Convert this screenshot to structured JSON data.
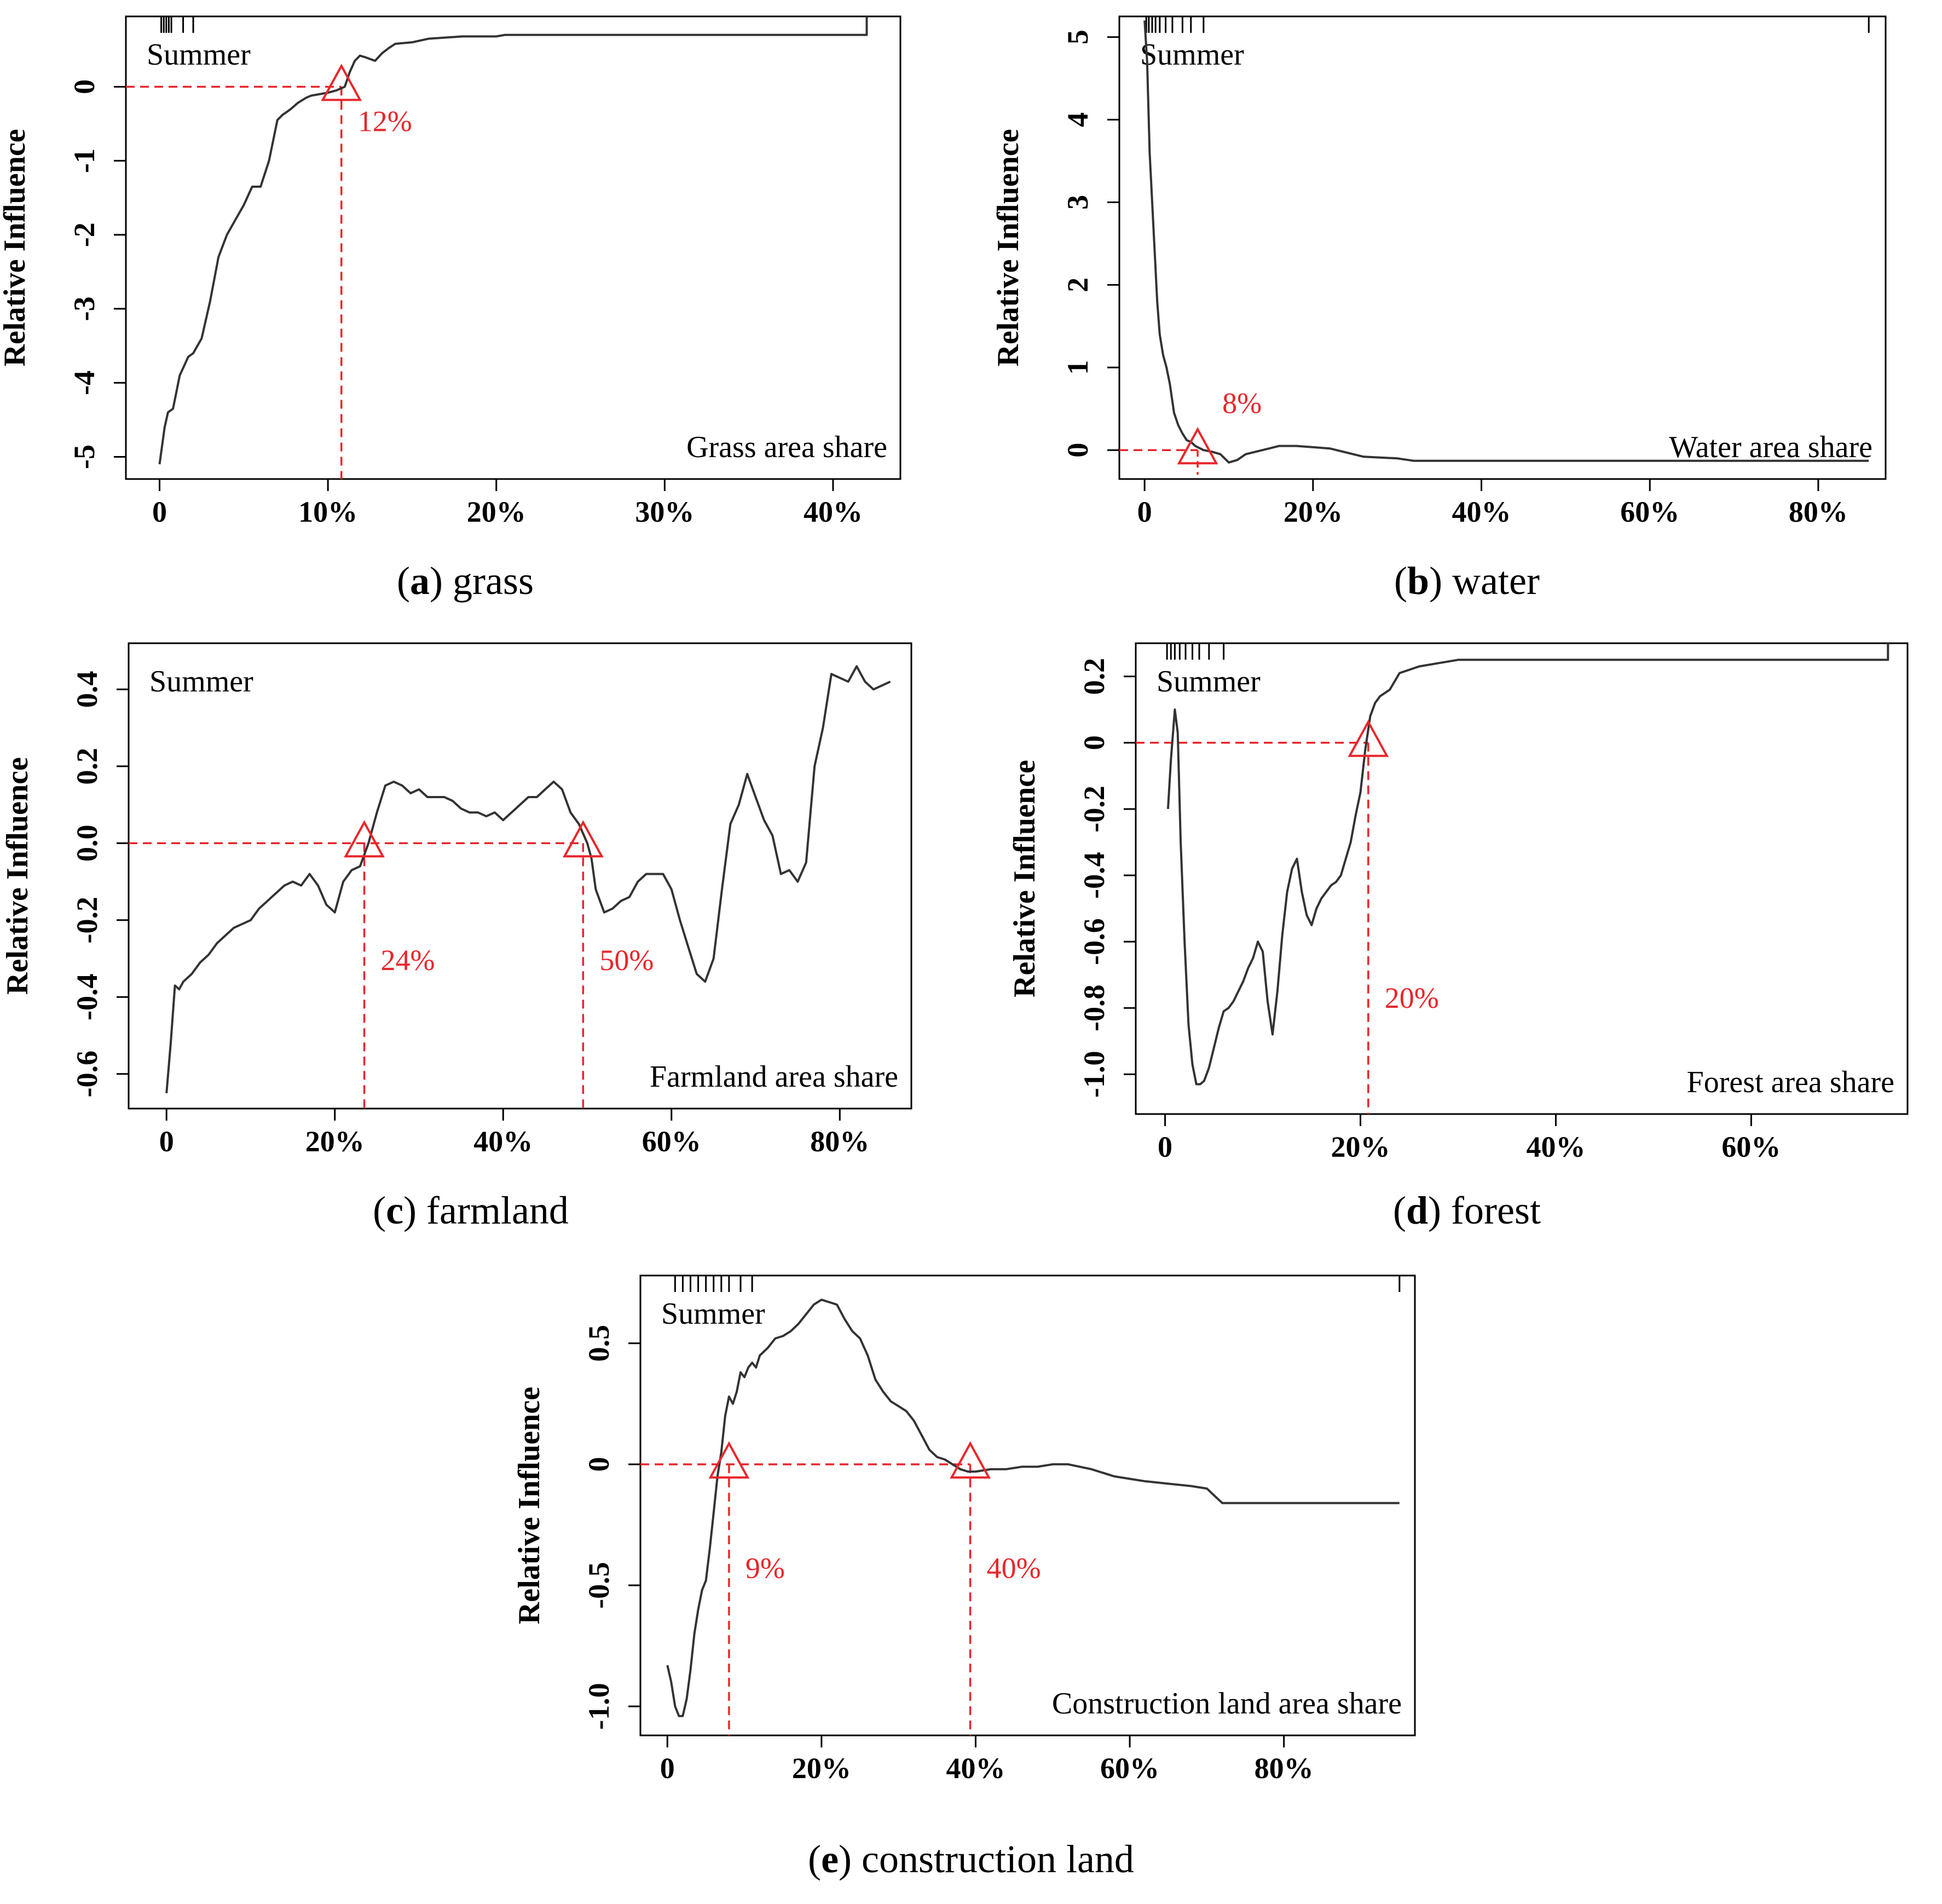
{
  "chart_data": [
    {
      "id": "a",
      "type": "line",
      "caption_letter": "a",
      "caption_text": "grass",
      "ylabel": "Relative Influence",
      "season": "Summer",
      "corner_label": "Grass area share",
      "xlim": [
        -2,
        44
      ],
      "ylim": [
        -5.3,
        0.95
      ],
      "xticks": [
        0,
        10,
        20,
        30,
        40
      ],
      "xtick_labels": [
        "0",
        "10%",
        "20%",
        "30%",
        "40%"
      ],
      "yticks": [
        0,
        -1,
        -2,
        -3,
        -4,
        -5
      ],
      "ytick_labels": [
        "0",
        "-1",
        "-2",
        "-3",
        "-4",
        "-5"
      ],
      "rug": [
        0.1,
        0.25,
        0.4,
        0.55,
        0.7,
        1.4,
        2.0
      ],
      "line": {
        "x": [
          0,
          0.3,
          0.5,
          0.8,
          1.2,
          1.5,
          1.7,
          2.0,
          2.5,
          3.0,
          3.5,
          4.0,
          4.5,
          5.0,
          5.5,
          6.0,
          6.5,
          7.0,
          7.3,
          7.5,
          7.8,
          8.2,
          8.7,
          9.0,
          9.5,
          10.0,
          10.5,
          11.0,
          11.3,
          11.6,
          11.9,
          12.2,
          12.8,
          13.2,
          13.6,
          14.0,
          15.0,
          16.0,
          18.0,
          20.0,
          20.5,
          22.0,
          25.0,
          30.0,
          35.0,
          40.0,
          42.0,
          42.0
        ],
        "y": [
          -5.1,
          -4.6,
          -4.4,
          -4.35,
          -3.9,
          -3.75,
          -3.65,
          -3.6,
          -3.4,
          -2.9,
          -2.3,
          -2.0,
          -1.8,
          -1.6,
          -1.35,
          -1.35,
          -1.0,
          -0.45,
          -0.38,
          -0.35,
          -0.3,
          -0.22,
          -0.15,
          -0.12,
          -0.1,
          -0.08,
          -0.05,
          0.0,
          0.2,
          0.35,
          0.42,
          0.4,
          0.35,
          0.45,
          0.52,
          0.58,
          0.6,
          0.65,
          0.68,
          0.68,
          0.7,
          0.7,
          0.7,
          0.7,
          0.7,
          0.7,
          0.7,
          0.95
        ]
      },
      "thresholds": [
        {
          "x": 10.8,
          "label": "12%",
          "label_side": "right",
          "label_y": -0.6
        }
      ],
      "h_guides": [
        {
          "x0": -2,
          "x1": 10.8
        }
      ]
    },
    {
      "id": "b",
      "type": "line",
      "caption_letter": "b",
      "caption_text": "water",
      "ylabel": "Relative Influence",
      "season": "Summer",
      "corner_label": "Water area share",
      "xlim": [
        -3,
        88
      ],
      "ylim": [
        -0.35,
        5.25
      ],
      "xticks": [
        0,
        20,
        40,
        60,
        80
      ],
      "xtick_labels": [
        "0",
        "20%",
        "40%",
        "60%",
        "80%"
      ],
      "yticks": [
        0,
        1,
        2,
        3,
        4,
        5
      ],
      "ytick_labels": [
        "0",
        "1",
        "2",
        "3",
        "4",
        "5"
      ],
      "rug": [
        0.2,
        0.5,
        0.9,
        1.3,
        1.8,
        2.5,
        3.3,
        4.5,
        5.5,
        7.0,
        86.0
      ],
      "line": {
        "x": [
          0,
          0.3,
          0.6,
          0.9,
          1.2,
          1.5,
          1.8,
          2.2,
          2.6,
          3.0,
          3.5,
          4.0,
          4.5,
          5.0,
          5.5,
          6.0,
          7.0,
          8.0,
          9.0,
          10.0,
          11.0,
          12.0,
          14.0,
          16.0,
          18.0,
          22.0,
          26.0,
          30.0,
          32.0,
          40.0,
          50.0,
          60.0,
          70.0,
          80.0,
          86.0
        ],
        "y": [
          5.2,
          4.7,
          3.6,
          3.0,
          2.4,
          1.8,
          1.4,
          1.15,
          1.0,
          0.8,
          0.45,
          0.3,
          0.2,
          0.12,
          0.1,
          0.05,
          0.0,
          -0.02,
          -0.05,
          -0.15,
          -0.12,
          -0.05,
          0.0,
          0.05,
          0.05,
          0.02,
          -0.08,
          -0.1,
          -0.13,
          -0.13,
          -0.13,
          -0.13,
          -0.13,
          -0.13,
          -0.13
        ]
      },
      "thresholds": [
        {
          "x": 6.3,
          "label": "8%",
          "label_side": "right-up",
          "label_y": 0.45,
          "no_vline": true
        }
      ],
      "h_guides": [
        {
          "x0": -3,
          "x1": 6.3
        }
      ]
    },
    {
      "id": "c",
      "type": "line",
      "caption_letter": "c",
      "caption_text": "farmland",
      "ylabel": "Relative Influence",
      "season": "Summer",
      "corner_label": "Farmland area share",
      "xlim": [
        -4.5,
        88.5
      ],
      "ylim": [
        -0.69,
        0.52
      ],
      "xticks": [
        0,
        20,
        40,
        60,
        80
      ],
      "xtick_labels": [
        "0",
        "20%",
        "40%",
        "60%",
        "80%"
      ],
      "yticks": [
        0.4,
        0.2,
        0.0,
        -0.2,
        -0.4,
        -0.6
      ],
      "ytick_labels": [
        "0.4",
        "0.2",
        "0.0",
        "-0.2",
        "-0.4",
        "-0.6"
      ],
      "rug": [],
      "line": {
        "x": [
          0,
          0.5,
          1.0,
          1.5,
          2.0,
          3.0,
          4.0,
          5.0,
          6.0,
          7.0,
          8.0,
          9.0,
          10.0,
          11.0,
          12.0,
          13.0,
          14.0,
          15.0,
          16.0,
          17.0,
          18.0,
          19.0,
          20.0,
          21.0,
          22.0,
          23.0,
          24.0,
          25.0,
          26.0,
          27.0,
          28.0,
          29.0,
          30.0,
          31.0,
          32.0,
          33.0,
          34.0,
          35.0,
          36.0,
          37.0,
          38.0,
          39.0,
          40.0,
          41.0,
          42.0,
          43.0,
          44.0,
          45.0,
          46.0,
          47.0,
          48.0,
          49.0,
          50.0,
          50.5,
          51.0,
          52.0,
          53.0,
          54.0,
          55.0,
          56.0,
          57.0,
          58.0,
          59.0,
          60.0,
          61.0,
          62.0,
          63.0,
          64.0,
          65.0,
          66.0,
          67.0,
          68.0,
          69.0,
          70.0,
          71.0,
          72.0,
          73.0,
          74.0,
          75.0,
          76.0,
          77.0,
          78.0,
          79.0,
          80.0,
          81.0,
          82.0,
          83.0,
          84.0,
          86.0
        ],
        "y": [
          -0.65,
          -0.52,
          -0.37,
          -0.38,
          -0.36,
          -0.34,
          -0.31,
          -0.29,
          -0.26,
          -0.24,
          -0.22,
          -0.21,
          -0.2,
          -0.17,
          -0.15,
          -0.13,
          -0.11,
          -0.1,
          -0.11,
          -0.08,
          -0.11,
          -0.16,
          -0.18,
          -0.1,
          -0.07,
          -0.06,
          0.0,
          0.08,
          0.15,
          0.16,
          0.15,
          0.13,
          0.14,
          0.12,
          0.12,
          0.12,
          0.11,
          0.09,
          0.08,
          0.08,
          0.07,
          0.08,
          0.06,
          0.08,
          0.1,
          0.12,
          0.12,
          0.14,
          0.16,
          0.14,
          0.08,
          0.05,
          0.0,
          -0.04,
          -0.12,
          -0.18,
          -0.17,
          -0.15,
          -0.14,
          -0.1,
          -0.08,
          -0.08,
          -0.08,
          -0.12,
          -0.2,
          -0.27,
          -0.34,
          -0.36,
          -0.3,
          -0.12,
          0.05,
          0.1,
          0.18,
          0.12,
          0.06,
          0.02,
          -0.08,
          -0.07,
          -0.1,
          -0.05,
          0.2,
          0.3,
          0.44,
          0.43,
          0.42,
          0.46,
          0.42,
          0.4,
          0.42
        ]
      },
      "thresholds": [
        {
          "x": 23.5,
          "label": "24%",
          "label_side": "right",
          "label_y": -0.33
        },
        {
          "x": 49.5,
          "label": "50%",
          "label_side": "right",
          "label_y": -0.33
        }
      ],
      "h_guides": [
        {
          "x0": -4.5,
          "x1": 49.5
        }
      ]
    },
    {
      "id": "d",
      "type": "line",
      "caption_letter": "d",
      "caption_text": "forest",
      "ylabel": "Relative Influence",
      "season": "Summer",
      "corner_label": "Forest area share",
      "xlim": [
        -3,
        76
      ],
      "ylim": [
        -1.12,
        0.3
      ],
      "xticks": [
        0,
        20,
        40,
        60
      ],
      "xtick_labels": [
        "0",
        "20%",
        "40%",
        "60%"
      ],
      "yticks": [
        0.2,
        0,
        -0.2,
        -0.4,
        -0.6,
        -0.8,
        -1.0
      ],
      "ytick_labels": [
        "0.2",
        "0",
        "-0.2",
        "-0.4",
        "-0.6",
        "-0.8",
        "-1.0"
      ],
      "rug": [
        0.2,
        0.6,
        1.0,
        1.5,
        2.1,
        2.8,
        3.5,
        4.5,
        6.0,
        74.0
      ],
      "line": {
        "x": [
          0.3,
          0.6,
          1.0,
          1.3,
          1.6,
          2.0,
          2.4,
          2.8,
          3.2,
          3.6,
          4.0,
          4.5,
          5.0,
          5.5,
          6.0,
          6.5,
          7.0,
          7.5,
          8.0,
          8.5,
          9.0,
          9.5,
          10.0,
          10.5,
          11.0,
          11.5,
          12.0,
          12.5,
          13.0,
          13.5,
          14.0,
          14.5,
          15.0,
          15.5,
          16.0,
          16.5,
          17.0,
          17.5,
          18.0,
          18.5,
          19.0,
          19.5,
          20.0,
          20.5,
          21.0,
          21.5,
          22.0,
          23.0,
          24.0,
          25.0,
          26.0,
          28.0,
          30.0,
          35.0,
          40.0,
          50.0,
          60.0,
          70.0,
          74.0,
          74.0
        ],
        "y": [
          -0.2,
          -0.05,
          0.1,
          0.03,
          -0.3,
          -0.6,
          -0.85,
          -0.97,
          -1.03,
          -1.03,
          -1.02,
          -0.98,
          -0.92,
          -0.86,
          -0.81,
          -0.8,
          -0.78,
          -0.75,
          -0.72,
          -0.68,
          -0.65,
          -0.6,
          -0.63,
          -0.78,
          -0.88,
          -0.75,
          -0.58,
          -0.45,
          -0.38,
          -0.35,
          -0.45,
          -0.52,
          -0.55,
          -0.5,
          -0.47,
          -0.45,
          -0.43,
          -0.42,
          -0.4,
          -0.35,
          -0.3,
          -0.22,
          -0.15,
          -0.02,
          0.08,
          0.12,
          0.14,
          0.16,
          0.21,
          0.22,
          0.23,
          0.24,
          0.25,
          0.25,
          0.25,
          0.25,
          0.25,
          0.25,
          0.25,
          0.3
        ]
      },
      "thresholds": [
        {
          "x": 20.8,
          "label": "20%",
          "label_side": "right",
          "label_y": -0.8
        }
      ],
      "h_guides": [
        {
          "x0": -3,
          "x1": 20.8
        }
      ]
    },
    {
      "id": "e",
      "type": "line",
      "caption_letter": "e",
      "caption_text": "construction land",
      "ylabel": "Relative Influence",
      "season": "Summer",
      "corner_label": "Construction land area share",
      "xlim": [
        -3.5,
        97
      ],
      "ylim": [
        -1.12,
        0.78
      ],
      "xticks": [
        0,
        20,
        40,
        60,
        80
      ],
      "xtick_labels": [
        "0",
        "20%",
        "40%",
        "60%",
        "80%"
      ],
      "yticks": [
        0.5,
        0,
        -0.5,
        -1.0
      ],
      "ytick_labels": [
        "0.5",
        "0",
        "-0.5",
        "-1.0"
      ],
      "rug": [
        1.0,
        2.0,
        3.0,
        4.0,
        5.0,
        6.0,
        7.0,
        8.0,
        9.5,
        11.0,
        95.0
      ],
      "line": {
        "x": [
          0,
          0.5,
          1.0,
          1.5,
          2.0,
          2.5,
          3.0,
          3.5,
          4.0,
          4.5,
          5.0,
          5.5,
          6.0,
          6.5,
          7.0,
          7.5,
          8.0,
          8.5,
          9.0,
          9.5,
          10.0,
          10.5,
          11.0,
          11.5,
          12.0,
          13.0,
          14.0,
          15.0,
          16.0,
          17.0,
          18.0,
          19.0,
          20.0,
          21.0,
          22.0,
          23.0,
          24.0,
          25.0,
          26.0,
          27.0,
          28.0,
          29.0,
          30.0,
          31.0,
          32.0,
          33.0,
          34.0,
          35.0,
          36.0,
          37.0,
          38.0,
          39.0,
          40.0,
          42.0,
          44.0,
          46.0,
          48.0,
          50.0,
          52.0,
          55.0,
          58.0,
          60.0,
          62.0,
          65.0,
          68.0,
          70.0,
          71.0,
          72.0,
          75.0,
          80.0,
          85.0,
          90.0,
          95.0
        ],
        "y": [
          -0.83,
          -0.9,
          -1.0,
          -1.04,
          -1.04,
          -0.97,
          -0.85,
          -0.7,
          -0.6,
          -0.52,
          -0.48,
          -0.35,
          -0.2,
          -0.05,
          0.05,
          0.2,
          0.28,
          0.25,
          0.3,
          0.38,
          0.36,
          0.4,
          0.42,
          0.4,
          0.45,
          0.48,
          0.52,
          0.53,
          0.55,
          0.58,
          0.62,
          0.66,
          0.68,
          0.67,
          0.66,
          0.6,
          0.55,
          0.52,
          0.45,
          0.35,
          0.3,
          0.26,
          0.24,
          0.22,
          0.18,
          0.12,
          0.06,
          0.03,
          0.02,
          0.0,
          -0.02,
          -0.03,
          -0.03,
          -0.02,
          -0.02,
          -0.01,
          -0.01,
          0.0,
          0.0,
          -0.02,
          -0.05,
          -0.06,
          -0.07,
          -0.08,
          -0.09,
          -0.1,
          -0.13,
          -0.16,
          -0.16,
          -0.16,
          -0.16,
          -0.16,
          -0.16
        ]
      },
      "thresholds": [
        {
          "x": 8.0,
          "label": "9%",
          "label_side": "right",
          "label_y": -0.47
        },
        {
          "x": 39.3,
          "label": "40%",
          "label_side": "right",
          "label_y": -0.47
        }
      ],
      "h_guides": [
        {
          "x0": -3.5,
          "x1": 39.3
        }
      ]
    }
  ]
}
